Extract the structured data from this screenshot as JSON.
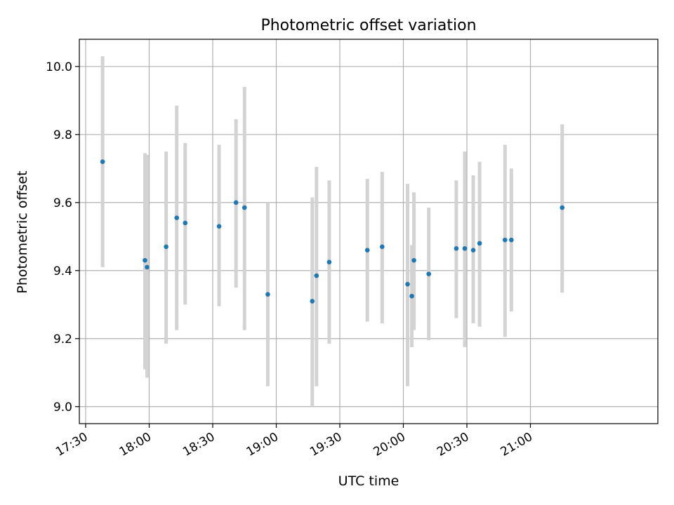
{
  "chart_data": {
    "type": "scatter",
    "title": "Photometric offset variation",
    "xlabel": "UTC time",
    "ylabel": "Photometric offset",
    "x_unit": "UTC clock time (HH:MM)",
    "xlim": [
      "17:30",
      "21:30"
    ],
    "ylim": [
      8.95,
      10.08
    ],
    "x_ticks": [
      "17:30",
      "18:00",
      "18:30",
      "19:00",
      "19:30",
      "20:00",
      "20:30",
      "21:00"
    ],
    "y_ticks": [
      9.0,
      9.2,
      9.4,
      9.6,
      9.8,
      10.0
    ],
    "y_tick_labels": [
      "9.0",
      "9.2",
      "9.4",
      "9.6",
      "9.8",
      "10.0"
    ],
    "grid": true,
    "colors": {
      "point": "#1f77b4",
      "errorbar": "#d3d3d3",
      "grid": "#b0b0b0",
      "axes": "#000000"
    },
    "points": [
      {
        "x": "17:38",
        "y": 9.72,
        "lo": 9.41,
        "hi": 10.03
      },
      {
        "x": "17:58",
        "y": 9.43,
        "lo": 9.11,
        "hi": 9.745
      },
      {
        "x": "17:59",
        "y": 9.41,
        "lo": 9.085,
        "hi": 9.74
      },
      {
        "x": "18:08",
        "y": 9.47,
        "lo": 9.185,
        "hi": 9.75
      },
      {
        "x": "18:13",
        "y": 9.555,
        "lo": 9.225,
        "hi": 9.885
      },
      {
        "x": "18:17",
        "y": 9.54,
        "lo": 9.3,
        "hi": 9.775
      },
      {
        "x": "18:33",
        "y": 9.53,
        "lo": 9.295,
        "hi": 9.77
      },
      {
        "x": "18:41",
        "y": 9.6,
        "lo": 9.35,
        "hi": 9.845
      },
      {
        "x": "18:45",
        "y": 9.585,
        "lo": 9.225,
        "hi": 9.94
      },
      {
        "x": "18:56",
        "y": 9.33,
        "lo": 9.06,
        "hi": 9.6
      },
      {
        "x": "19:17",
        "y": 9.31,
        "lo": 9.0,
        "hi": 9.615
      },
      {
        "x": "19:19",
        "y": 9.385,
        "lo": 9.06,
        "hi": 9.705
      },
      {
        "x": "19:25",
        "y": 9.425,
        "lo": 9.185,
        "hi": 9.665
      },
      {
        "x": "19:43",
        "y": 9.46,
        "lo": 9.25,
        "hi": 9.67
      },
      {
        "x": "19:50",
        "y": 9.47,
        "lo": 9.245,
        "hi": 9.69
      },
      {
        "x": "20:02",
        "y": 9.36,
        "lo": 9.06,
        "hi": 9.655
      },
      {
        "x": "20:04",
        "y": 9.325,
        "lo": 9.175,
        "hi": 9.475
      },
      {
        "x": "20:05",
        "y": 9.43,
        "lo": 9.225,
        "hi": 9.63
      },
      {
        "x": "20:12",
        "y": 9.39,
        "lo": 9.195,
        "hi": 9.585
      },
      {
        "x": "20:25",
        "y": 9.465,
        "lo": 9.26,
        "hi": 9.665
      },
      {
        "x": "20:29",
        "y": 9.465,
        "lo": 9.175,
        "hi": 9.75
      },
      {
        "x": "20:33",
        "y": 9.46,
        "lo": 9.245,
        "hi": 9.68
      },
      {
        "x": "20:36",
        "y": 9.48,
        "lo": 9.235,
        "hi": 9.72
      },
      {
        "x": "20:48",
        "y": 9.49,
        "lo": 9.205,
        "hi": 9.77
      },
      {
        "x": "20:51",
        "y": 9.49,
        "lo": 9.28,
        "hi": 9.7
      },
      {
        "x": "21:15",
        "y": 9.585,
        "lo": 9.335,
        "hi": 9.83
      }
    ]
  }
}
